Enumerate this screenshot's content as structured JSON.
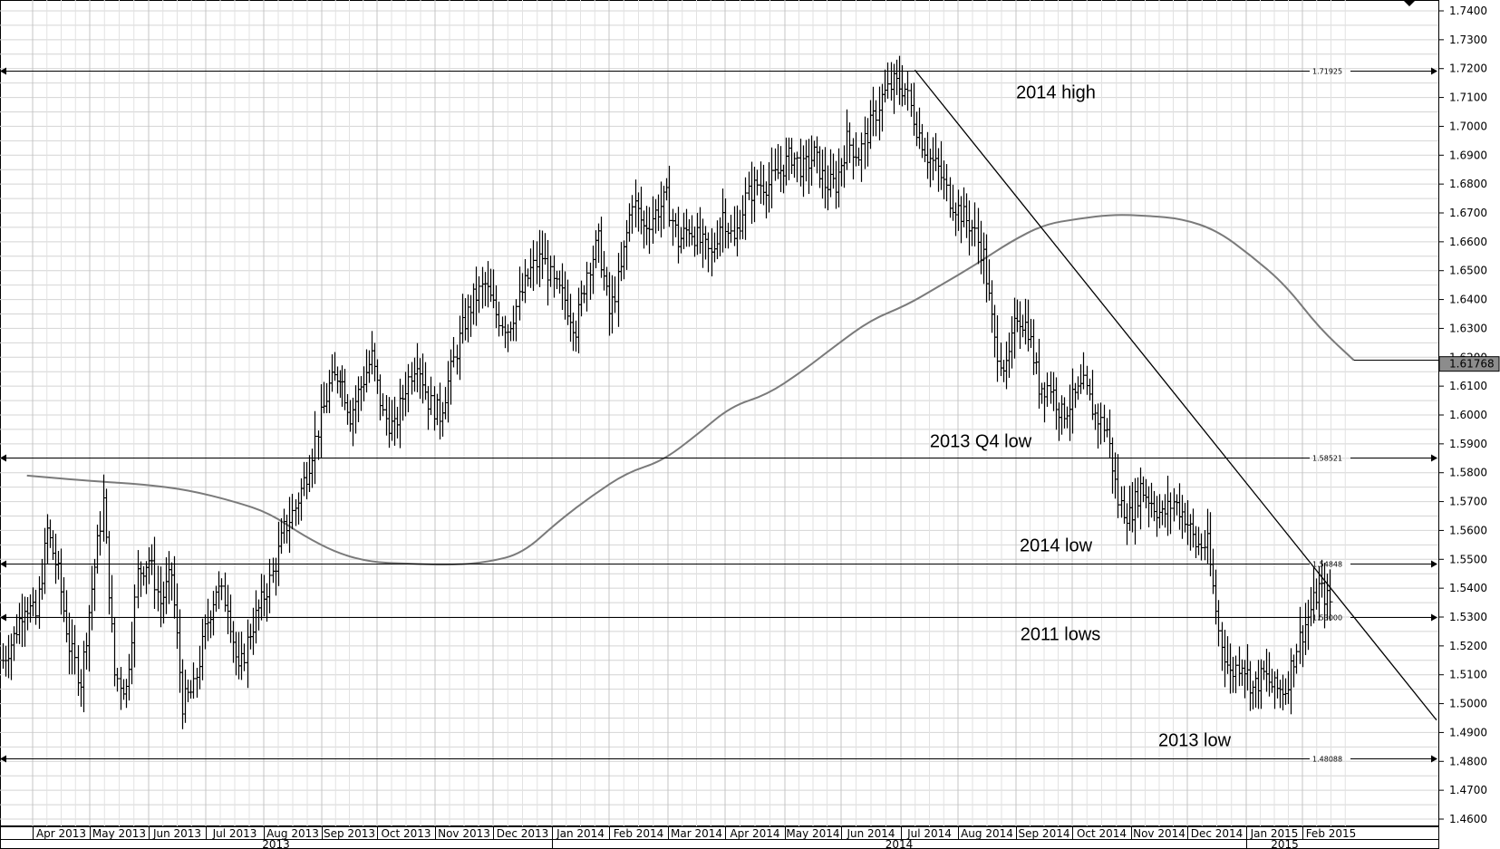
{
  "chart_data": {
    "type": "ohlc-bar",
    "y_axis": {
      "min": 1.455,
      "max": 1.745,
      "ticks": [
        "1.7400",
        "1.7300",
        "1.7200",
        "1.7100",
        "1.7000",
        "1.6900",
        "1.6800",
        "1.6700",
        "1.6600",
        "1.6500",
        "1.6400",
        "1.6300",
        "1.6200",
        "1.6100",
        "1.6000",
        "1.5900",
        "1.5800",
        "1.5700",
        "1.5600",
        "1.5500",
        "1.5400",
        "1.5300",
        "1.5200",
        "1.5100",
        "1.5000",
        "1.4900",
        "1.4800",
        "1.4700",
        "1.4600"
      ]
    },
    "x_axis": {
      "months": [
        "Apr 2013",
        "May 2013",
        "Jun 2013",
        "Jul 2013",
        "Aug 2013",
        "Sep 2013",
        "Oct 2013",
        "Nov 2013",
        "Dec 2013",
        "Jan 2014",
        "Feb 2014",
        "Mar 2014",
        "Apr 2014",
        "May 2014",
        "Jun 2014",
        "Jul 2014",
        "Aug 2014",
        "Sep 2014",
        "Oct 2014",
        "Nov 2014",
        "Dec 2014",
        "Jan 2015",
        "Feb 2015"
      ],
      "years": [
        "2013",
        "2014",
        "2015"
      ]
    },
    "price_path": [
      [
        0,
        1.515
      ],
      [
        0.5,
        1.523
      ],
      [
        1,
        1.535
      ],
      [
        1.5,
        1.53
      ],
      [
        2,
        1.56
      ],
      [
        2.5,
        1.545
      ],
      [
        3,
        1.52
      ],
      [
        3.5,
        1.508
      ],
      [
        4,
        1.54
      ],
      [
        4.5,
        1.57
      ],
      [
        5,
        1.51
      ],
      [
        5.5,
        1.505
      ],
      [
        6,
        1.545
      ],
      [
        6.5,
        1.55
      ],
      [
        7,
        1.535
      ],
      [
        7.5,
        1.545
      ],
      [
        8,
        1.5
      ],
      [
        8.5,
        1.505
      ],
      [
        9,
        1.525
      ],
      [
        9.5,
        1.54
      ],
      [
        10,
        1.535
      ],
      [
        10.5,
        1.51
      ],
      [
        11,
        1.525
      ],
      [
        11.5,
        1.535
      ],
      [
        12,
        1.545
      ],
      [
        12.5,
        1.56
      ],
      [
        13,
        1.568
      ],
      [
        13.5,
        1.58
      ],
      [
        14,
        1.595
      ],
      [
        14.5,
        1.61
      ],
      [
        15,
        1.615
      ],
      [
        15.5,
        1.6
      ],
      [
        16,
        1.61
      ],
      [
        16.5,
        1.62
      ],
      [
        17,
        1.6
      ],
      [
        17.5,
        1.595
      ],
      [
        18,
        1.61
      ],
      [
        18.5,
        1.62
      ],
      [
        19,
        1.605
      ],
      [
        19.5,
        1.6
      ],
      [
        20,
        1.615
      ],
      [
        20.5,
        1.63
      ],
      [
        21,
        1.64
      ],
      [
        21.5,
        1.645
      ],
      [
        22,
        1.635
      ],
      [
        22.5,
        1.63
      ],
      [
        23,
        1.64
      ],
      [
        23.5,
        1.65
      ],
      [
        24,
        1.655
      ],
      [
        24.5,
        1.645
      ],
      [
        25,
        1.64
      ],
      [
        25.5,
        1.63
      ],
      [
        26,
        1.65
      ],
      [
        26.5,
        1.66
      ],
      [
        27,
        1.635
      ],
      [
        27.5,
        1.65
      ],
      [
        28,
        1.675
      ],
      [
        28.5,
        1.665
      ],
      [
        29,
        1.67
      ],
      [
        29.5,
        1.675
      ],
      [
        30,
        1.66
      ],
      [
        30.5,
        1.665
      ],
      [
        31,
        1.66
      ],
      [
        31.5,
        1.655
      ],
      [
        32,
        1.67
      ],
      [
        32.5,
        1.66
      ],
      [
        33,
        1.675
      ],
      [
        33.5,
        1.68
      ],
      [
        34,
        1.68
      ],
      [
        34.5,
        1.685
      ],
      [
        35,
        1.69
      ],
      [
        35.5,
        1.685
      ],
      [
        36,
        1.69
      ],
      [
        36.5,
        1.68
      ],
      [
        37,
        1.68
      ],
      [
        37.5,
        1.695
      ],
      [
        38,
        1.69
      ],
      [
        38.5,
        1.7
      ],
      [
        39,
        1.71
      ],
      [
        39.5,
        1.715
      ],
      [
        40,
        1.713
      ],
      [
        40.5,
        1.7
      ],
      [
        41,
        1.69
      ],
      [
        41.5,
        1.685
      ],
      [
        42,
        1.675
      ],
      [
        42.5,
        1.67
      ],
      [
        43,
        1.665
      ],
      [
        43.5,
        1.655
      ],
      [
        44,
        1.625
      ],
      [
        44.5,
        1.615
      ],
      [
        45,
        1.635
      ],
      [
        45.5,
        1.63
      ],
      [
        46,
        1.61
      ],
      [
        46.5,
        1.61
      ],
      [
        47,
        1.6
      ],
      [
        47.5,
        1.605
      ],
      [
        48,
        1.61
      ],
      [
        48.5,
        1.6
      ],
      [
        49,
        1.595
      ],
      [
        49.5,
        1.57
      ],
      [
        50,
        1.565
      ],
      [
        50.5,
        1.575
      ],
      [
        51,
        1.57
      ],
      [
        51.5,
        1.565
      ],
      [
        52,
        1.57
      ],
      [
        52.5,
        1.565
      ],
      [
        53,
        1.555
      ],
      [
        53.5,
        1.555
      ],
      [
        54,
        1.525
      ],
      [
        54.5,
        1.51
      ],
      [
        55,
        1.515
      ],
      [
        55.5,
        1.505
      ],
      [
        56,
        1.51
      ],
      [
        56.5,
        1.505
      ],
      [
        57,
        1.505
      ],
      [
        57.5,
        1.52
      ],
      [
        58,
        1.53
      ],
      [
        58.5,
        1.54
      ],
      [
        59,
        1.535
      ]
    ],
    "moving_average": [
      [
        1,
        1.579
      ],
      [
        4,
        1.577
      ],
      [
        6,
        1.576
      ],
      [
        8,
        1.574
      ],
      [
        10,
        1.57
      ],
      [
        11.5,
        1.566
      ],
      [
        13,
        1.558
      ],
      [
        14.5,
        1.552
      ],
      [
        16,
        1.549
      ],
      [
        17.5,
        1.5485
      ],
      [
        19.5,
        1.548
      ],
      [
        21,
        1.549
      ],
      [
        22.5,
        1.552
      ],
      [
        24,
        1.563
      ],
      [
        25.5,
        1.572
      ],
      [
        27,
        1.58
      ],
      [
        28.5,
        1.584
      ],
      [
        30,
        1.593
      ],
      [
        31.5,
        1.603
      ],
      [
        33,
        1.607
      ],
      [
        34.5,
        1.615
      ],
      [
        36,
        1.624
      ],
      [
        37.5,
        1.633
      ],
      [
        39,
        1.638
      ],
      [
        40.5,
        1.645
      ],
      [
        42,
        1.652
      ],
      [
        43.5,
        1.66
      ],
      [
        45,
        1.666
      ],
      [
        46.5,
        1.668
      ],
      [
        48,
        1.6695
      ],
      [
        49.5,
        1.669
      ],
      [
        51,
        1.668
      ],
      [
        52.5,
        1.664
      ],
      [
        54,
        1.655
      ],
      [
        55.5,
        1.645
      ],
      [
        57,
        1.63
      ],
      [
        58.5,
        1.619
      ]
    ],
    "levels": [
      {
        "value": 1.71925,
        "label": "1.71925",
        "annotation": "2014 high"
      },
      {
        "value": 1.58521,
        "label": "1.58521",
        "annotation": "2013 Q4 low"
      },
      {
        "value": 1.54848,
        "label": "1.54848",
        "annotation": "2014 low"
      },
      {
        "value": 1.53,
        "label": "1.53000",
        "annotation": "2011 lows"
      },
      {
        "value": 1.48088,
        "label": "1.48088",
        "annotation": "2013 low"
      }
    ],
    "trendline": [
      [
        40.5,
        1.7195
      ],
      [
        61,
        1.4943
      ]
    ],
    "last_price": "1.61768",
    "grid": true
  }
}
